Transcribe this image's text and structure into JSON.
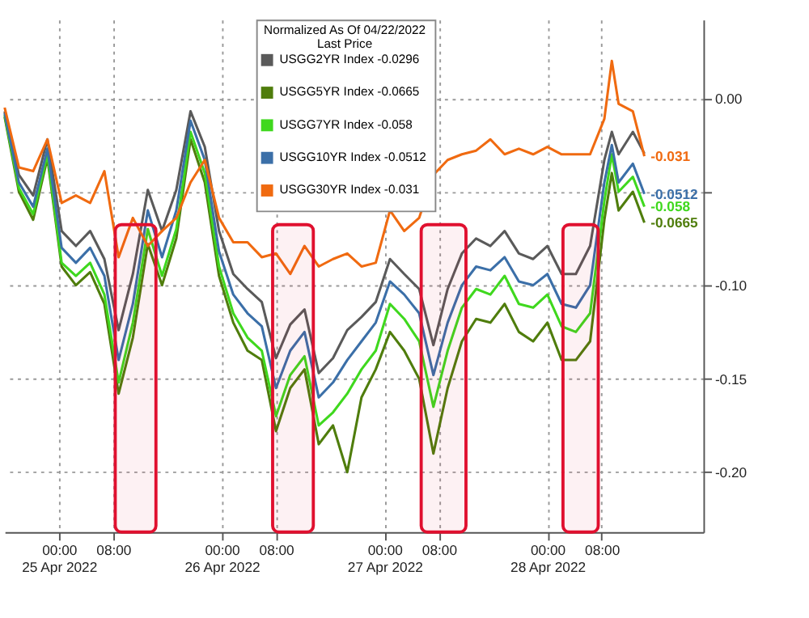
{
  "chart_data": {
    "type": "line",
    "legend_title": "Normalized As Of 04/22/2022\nLast Price",
    "x": [
      "2022-04-24T16:00",
      "2022-04-24T18:06",
      "2022-04-24T20:12",
      "2022-04-24T22:18",
      "2022-04-25T00:24",
      "2022-04-25T02:30",
      "2022-04-25T04:36",
      "2022-04-25T06:42",
      "2022-04-25T08:48",
      "2022-04-25T10:54",
      "2022-04-25T13:06",
      "2022-04-25T15:12",
      "2022-04-25T17:18",
      "2022-04-25T19:24",
      "2022-04-25T21:30",
      "2022-04-25T23:36",
      "2022-04-26T01:42",
      "2022-04-26T03:48",
      "2022-04-26T05:54",
      "2022-04-26T08:00",
      "2022-04-26T10:06",
      "2022-04-26T12:12",
      "2022-04-26T14:18",
      "2022-04-26T16:24",
      "2022-04-26T18:30",
      "2022-04-26T20:36",
      "2022-04-26T22:42",
      "2022-04-27T00:48",
      "2022-04-27T02:54",
      "2022-04-27T05:06",
      "2022-04-27T07:12",
      "2022-04-27T09:18",
      "2022-04-27T11:24",
      "2022-04-27T13:30",
      "2022-04-27T15:36",
      "2022-04-27T17:42",
      "2022-04-27T19:48",
      "2022-04-27T21:54",
      "2022-04-28T00:00",
      "2022-04-28T02:06",
      "2022-04-28T04:12",
      "2022-04-28T06:18",
      "2022-04-28T08:24",
      "2022-04-28T09:30",
      "2022-04-28T10:30",
      "2022-04-28T12:36",
      "2022-04-28T14:18"
    ],
    "series": [
      {
        "name": "USGG2YR Index  -0.0296",
        "color": "#5a5a5a",
        "values": [
          -0.007,
          -0.041,
          -0.052,
          -0.022,
          -0.071,
          -0.079,
          -0.071,
          -0.086,
          -0.124,
          -0.094,
          -0.049,
          -0.071,
          -0.049,
          -0.007,
          -0.026,
          -0.071,
          -0.094,
          -0.102,
          -0.109,
          -0.139,
          -0.121,
          -0.113,
          -0.147,
          -0.139,
          -0.124,
          -0.117,
          -0.109,
          -0.086,
          -0.094,
          -0.102,
          -0.132,
          -0.102,
          -0.083,
          -0.075,
          -0.079,
          -0.071,
          -0.083,
          -0.086,
          -0.079,
          -0.094,
          -0.094,
          -0.079,
          -0.033,
          -0.018,
          -0.03,
          -0.018,
          -0.0296
        ]
      },
      {
        "name": "USGG5YR Index  -0.0665",
        "color": "#4f7d0c",
        "values": [
          -0.01,
          -0.05,
          -0.065,
          -0.032,
          -0.09,
          -0.1,
          -0.093,
          -0.11,
          -0.158,
          -0.128,
          -0.078,
          -0.1,
          -0.075,
          -0.022,
          -0.045,
          -0.095,
          -0.12,
          -0.135,
          -0.14,
          -0.178,
          -0.155,
          -0.145,
          -0.185,
          -0.175,
          -0.2,
          -0.16,
          -0.145,
          -0.125,
          -0.135,
          -0.15,
          -0.19,
          -0.155,
          -0.13,
          -0.118,
          -0.12,
          -0.11,
          -0.125,
          -0.13,
          -0.12,
          -0.14,
          -0.14,
          -0.13,
          -0.065,
          -0.04,
          -0.06,
          -0.05,
          -0.0665
        ],
        "value_labels": [
          null,
          null,
          null,
          null,
          null,
          null,
          null,
          null,
          null,
          null,
          null,
          null,
          null,
          null,
          null,
          null,
          null,
          null,
          null,
          null,
          null,
          null,
          null,
          null,
          null,
          null,
          null,
          null,
          null,
          null,
          null,
          null,
          null,
          null,
          null,
          null,
          null,
          null,
          null,
          null,
          null,
          null,
          null,
          null,
          null,
          null,
          "-0.0665"
        ]
      },
      {
        "name": "USGG7YR Index  -0.058",
        "color": "#3fd81e",
        "values": [
          -0.009,
          -0.048,
          -0.062,
          -0.03,
          -0.088,
          -0.095,
          -0.088,
          -0.105,
          -0.152,
          -0.12,
          -0.07,
          -0.095,
          -0.07,
          -0.018,
          -0.04,
          -0.09,
          -0.115,
          -0.128,
          -0.135,
          -0.17,
          -0.148,
          -0.138,
          -0.175,
          -0.168,
          -0.158,
          -0.145,
          -0.135,
          -0.11,
          -0.118,
          -0.13,
          -0.165,
          -0.135,
          -0.112,
          -0.102,
          -0.105,
          -0.095,
          -0.11,
          -0.112,
          -0.105,
          -0.122,
          -0.125,
          -0.115,
          -0.055,
          -0.03,
          -0.05,
          -0.042,
          -0.058
        ],
        "value_labels": [
          null,
          null,
          null,
          null,
          null,
          null,
          null,
          null,
          null,
          null,
          null,
          null,
          null,
          null,
          null,
          null,
          null,
          null,
          null,
          null,
          null,
          null,
          null,
          null,
          null,
          null,
          null,
          null,
          null,
          null,
          null,
          null,
          null,
          null,
          null,
          null,
          null,
          null,
          null,
          null,
          null,
          null,
          null,
          null,
          null,
          null,
          "-0.058"
        ]
      },
      {
        "name": "USGG10YR Index  -0.0512",
        "color": "#3b6fa8",
        "values": [
          -0.008,
          -0.045,
          -0.058,
          -0.027,
          -0.08,
          -0.088,
          -0.08,
          -0.095,
          -0.14,
          -0.11,
          -0.06,
          -0.085,
          -0.06,
          -0.012,
          -0.033,
          -0.082,
          -0.105,
          -0.115,
          -0.122,
          -0.155,
          -0.135,
          -0.125,
          -0.16,
          -0.152,
          -0.14,
          -0.13,
          -0.12,
          -0.098,
          -0.105,
          -0.115,
          -0.148,
          -0.12,
          -0.1,
          -0.09,
          -0.092,
          -0.085,
          -0.098,
          -0.1,
          -0.094,
          -0.11,
          -0.112,
          -0.1,
          -0.045,
          -0.025,
          -0.045,
          -0.035,
          -0.0512
        ],
        "value_labels": [
          null,
          null,
          null,
          null,
          null,
          null,
          null,
          null,
          null,
          null,
          null,
          null,
          null,
          null,
          null,
          null,
          null,
          null,
          null,
          null,
          null,
          null,
          null,
          null,
          null,
          null,
          null,
          null,
          null,
          null,
          null,
          null,
          null,
          null,
          null,
          null,
          null,
          null,
          null,
          null,
          null,
          null,
          null,
          null,
          null,
          null,
          "-0.0512"
        ]
      },
      {
        "name": "USGG30YR Index  -0.031",
        "color": "#f06a10",
        "values": [
          -0.005,
          -0.037,
          -0.039,
          -0.022,
          -0.056,
          -0.052,
          -0.056,
          -0.039,
          -0.085,
          -0.064,
          -0.079,
          -0.071,
          -0.064,
          -0.045,
          -0.033,
          -0.064,
          -0.077,
          -0.077,
          -0.085,
          -0.083,
          -0.094,
          -0.079,
          -0.09,
          -0.086,
          -0.083,
          -0.09,
          -0.088,
          -0.06,
          -0.071,
          -0.064,
          -0.041,
          -0.033,
          -0.03,
          -0.028,
          -0.022,
          -0.03,
          -0.027,
          -0.03,
          -0.026,
          -0.03,
          -0.03,
          -0.03,
          -0.011,
          0.02,
          -0.003,
          -0.007,
          -0.031
        ],
        "value_labels": [
          null,
          null,
          null,
          null,
          null,
          null,
          null,
          null,
          null,
          null,
          null,
          null,
          null,
          null,
          null,
          null,
          null,
          null,
          null,
          null,
          null,
          null,
          null,
          null,
          null,
          null,
          null,
          null,
          null,
          null,
          null,
          null,
          null,
          null,
          null,
          null,
          null,
          null,
          null,
          null,
          null,
          null,
          null,
          null,
          null,
          null,
          "-0.031"
        ]
      }
    ],
    "bands": [
      {
        "axis": "x",
        "from": "2022-04-25T08:18",
        "to": "2022-04-25T14:18",
        "color": "#e0102f"
      },
      {
        "axis": "x",
        "from": "2022-04-26T07:30",
        "to": "2022-04-26T13:30",
        "color": "#e0102f"
      },
      {
        "axis": "x",
        "from": "2022-04-27T05:24",
        "to": "2022-04-27T12:00",
        "color": "#e0102f"
      },
      {
        "axis": "x",
        "from": "2022-04-28T02:18",
        "to": "2022-04-28T07:30",
        "color": "#e0102f"
      }
    ],
    "xlim": [
      "2022-04-24T16:00",
      "2022-04-28T23:00"
    ],
    "xticks": [
      {
        "value": "2022-04-25T00:00",
        "label": "00:00\n25 Apr 2022"
      },
      {
        "value": "2022-04-25T08:00",
        "label": "08:00"
      },
      {
        "value": "2022-04-26T00:00",
        "label": "00:00\n26 Apr 2022"
      },
      {
        "value": "2022-04-26T08:00",
        "label": "08:00"
      },
      {
        "value": "2022-04-27T00:00",
        "label": "00:00\n27 Apr 2022"
      },
      {
        "value": "2022-04-27T08:00",
        "label": "08:00"
      },
      {
        "value": "2022-04-28T00:00",
        "label": "00:00\n28 Apr 2022"
      },
      {
        "value": "2022-04-28T08:00",
        "label": "08:00"
      }
    ],
    "ylim": [
      -0.232,
      0.042
    ],
    "yticks": [
      {
        "value": -0.2,
        "label": "-0.20"
      },
      {
        "value": -0.15,
        "label": "-0.15"
      },
      {
        "value": -0.1,
        "label": "-0.10"
      },
      {
        "value": -0.05,
        "label": null
      },
      {
        "value": 0,
        "label": "0.00"
      }
    ],
    "grid": true,
    "legend": "top",
    "line_style": "solid",
    "marker": "none"
  }
}
